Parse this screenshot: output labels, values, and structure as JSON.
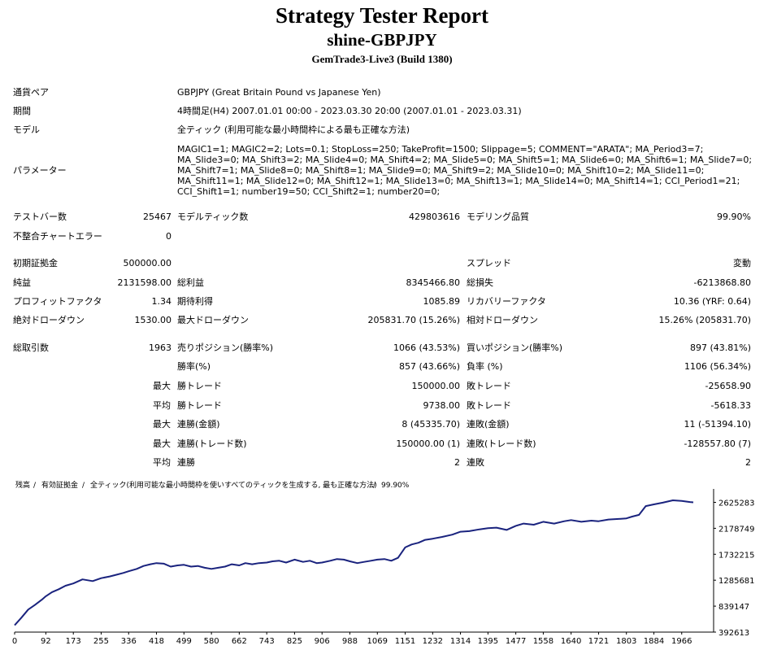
{
  "report": {
    "title": "Strategy Tester Report",
    "ea_name": "shine-GBPJPY",
    "server": "GemTrade3-Live3 (Build 1380)"
  },
  "settings": {
    "symbol_label": "通貨ペア",
    "symbol_value": "GBPJPY (Great Britain Pound vs Japanese Yen)",
    "period_label": "期間",
    "period_value": "4時間足(H4) 2007.01.01 00:00 - 2023.03.30 20:00 (2007.01.01 - 2023.03.31)",
    "model_label": "モデル",
    "model_value": "全ティック (利用可能な最小時間枠による最も正確な方法)",
    "params_label": "パラメーター",
    "params_lines": [
      "MAGIC1=1; MAGIC2=2; Lots=0.1; StopLoss=250; TakeProfit=1500; Slippage=5; COMMENT=\"ARATA\"; MA_Period3=7;",
      "MA_Slide3=0; MA_Shift3=2; MA_Slide4=0; MA_Shift4=2; MA_Slide5=0; MA_Shift5=1; MA_Slide6=0; MA_Shift6=1; MA_Slide7=0;",
      "MA_Shift7=1; MA_Slide8=0; MA_Shift8=1; MA_Slide9=0; MA_Shift9=2; MA_Slide10=0; MA_Shift10=2; MA_Slide11=0;",
      "MA_Shift11=1; MA_Slide12=0; MA_Shift12=1; MA_Slide13=0; MA_Shift13=1; MA_Slide14=0; MA_Shift14=1; CCI_Period1=21;",
      "CCI_Shift1=1; number19=50; CCI_Shift2=1; number20=0;"
    ]
  },
  "rows": {
    "bars_label": "テストバー数",
    "bars_value": "25467",
    "ticks_label": "モデルティック数",
    "ticks_value": "429803616",
    "quality_label": "モデリング品質",
    "quality_value": "99.90%",
    "mismatch_label": "不整合チャートエラー",
    "mismatch_value": "0",
    "deposit_label": "初期証拠金",
    "deposit_value": "500000.00",
    "spread_label": "スプレッド",
    "spread_value": "変動",
    "net_label": "純益",
    "net_value": "2131598.00",
    "gross_profit_label": "総利益",
    "gross_profit_value": "8345466.80",
    "gross_loss_label": "総損失",
    "gross_loss_value": "-6213868.80",
    "pf_label": "プロフィットファクタ",
    "pf_value": "1.34",
    "expected_label": "期待利得",
    "expected_value": "1085.89",
    "recovery_label": "リカバリーファクタ",
    "recovery_value": "10.36 (YRF: 0.64)",
    "abs_dd_label": "絶対ドローダウン",
    "abs_dd_value": "1530.00",
    "max_dd_label": "最大ドローダウン",
    "max_dd_value": "205831.70 (15.26%)",
    "rel_dd_label": "相対ドローダウン",
    "rel_dd_value": "15.26% (205831.70)",
    "total_label": "総取引数",
    "total_value": "1963",
    "short_label": "売りポジション(勝率%)",
    "short_value": "1066 (43.53%)",
    "long_label": "買いポジション(勝率%)",
    "long_value": "897 (43.81%)",
    "win_rate_label": "勝率(%)",
    "win_rate_value": "857 (43.66%)",
    "loss_rate_label": "負率 (%)",
    "loss_rate_value": "1106 (56.34%)",
    "max_prefix": "最大",
    "avg_prefix": "平均",
    "max_win_label": "勝トレード",
    "max_win_value": "150000.00",
    "max_loss_label": "敗トレード",
    "max_loss_value": "-25658.90",
    "avg_win_label": "勝トレード",
    "avg_win_value": "9738.00",
    "avg_loss_label": "敗トレード",
    "avg_loss_value": "-5618.33",
    "cons_win_money_label": "連勝(金額)",
    "cons_win_money_value": "8 (45335.70)",
    "cons_loss_money_label": "連敗(金額)",
    "cons_loss_money_value": "11 (-51394.10)",
    "cons_win_count_label": "連勝(トレード数)",
    "cons_win_count_value": "150000.00 (1)",
    "cons_loss_count_label": "連敗(トレード数)",
    "cons_loss_count_value": "-128557.80 (7)",
    "avg_cons_win_label": "連勝",
    "avg_cons_win_value": "2",
    "avg_cons_loss_label": "連敗",
    "avg_cons_loss_value": "2"
  },
  "chart_data": {
    "type": "line",
    "legend": {
      "balance": "残高",
      "sep1": " / ",
      "margin": "有効証拠金",
      "sep2": " / ",
      "model": "全ティック(利用可能な最小時間枠を使いすべてのティックを生成する, 最も正確な方法)",
      "sep3": " / ",
      "quality": "99.90%"
    },
    "colors": {
      "balance": "#00008b",
      "margin": "#008000",
      "line": "#1a237e",
      "axis": "#000000"
    },
    "x_ticks": [
      0,
      92,
      173,
      255,
      336,
      418,
      499,
      580,
      662,
      743,
      825,
      906,
      988,
      1069,
      1151,
      1232,
      1314,
      1395,
      1477,
      1558,
      1640,
      1721,
      1803,
      1884,
      1966
    ],
    "y_ticks": [
      392613,
      839147,
      1285681,
      1732215,
      2178749,
      2625283
    ],
    "xlim": [
      0,
      2060
    ],
    "ylim": [
      392613,
      2800000
    ],
    "series": [
      {
        "values_x": [
          0,
          20,
          40,
          60,
          80,
          92,
          110,
          130,
          150,
          173,
          200,
          230,
          255,
          280,
          300,
          320,
          336,
          360,
          380,
          400,
          418,
          440,
          460,
          480,
          499,
          520,
          540,
          560,
          580,
          600,
          620,
          640,
          662,
          680,
          700,
          720,
          743,
          760,
          780,
          800,
          825,
          850,
          870,
          890,
          906,
          930,
          950,
          970,
          988,
          1010,
          1030,
          1050,
          1069,
          1090,
          1110,
          1130,
          1151,
          1170,
          1190,
          1210,
          1232,
          1260,
          1290,
          1314,
          1340,
          1370,
          1395,
          1420,
          1450,
          1477,
          1500,
          1530,
          1558,
          1590,
          1620,
          1640,
          1670,
          1700,
          1721,
          1750,
          1780,
          1803,
          1820,
          1840,
          1860,
          1884,
          1910,
          1940,
          1966,
          1990,
          2000
        ],
        "values_y": [
          510000,
          640000,
          780000,
          860000,
          950000,
          1010000,
          1080000,
          1130000,
          1190000,
          1230000,
          1300000,
          1270000,
          1320000,
          1350000,
          1380000,
          1410000,
          1440000,
          1480000,
          1530000,
          1560000,
          1580000,
          1570000,
          1520000,
          1540000,
          1550000,
          1520000,
          1530000,
          1500000,
          1480000,
          1500000,
          1520000,
          1560000,
          1540000,
          1580000,
          1560000,
          1580000,
          1590000,
          1610000,
          1620000,
          1590000,
          1640000,
          1600000,
          1620000,
          1580000,
          1590000,
          1620000,
          1650000,
          1640000,
          1610000,
          1580000,
          1600000,
          1620000,
          1640000,
          1650000,
          1620000,
          1670000,
          1850000,
          1900000,
          1930000,
          1980000,
          2000000,
          2030000,
          2070000,
          2120000,
          2130000,
          2160000,
          2180000,
          2190000,
          2150000,
          2220000,
          2260000,
          2240000,
          2290000,
          2260000,
          2300000,
          2320000,
          2290000,
          2310000,
          2300000,
          2330000,
          2340000,
          2350000,
          2380000,
          2410000,
          2560000,
          2590000,
          2620000,
          2660000,
          2650000,
          2630000,
          2625000
        ]
      }
    ]
  }
}
